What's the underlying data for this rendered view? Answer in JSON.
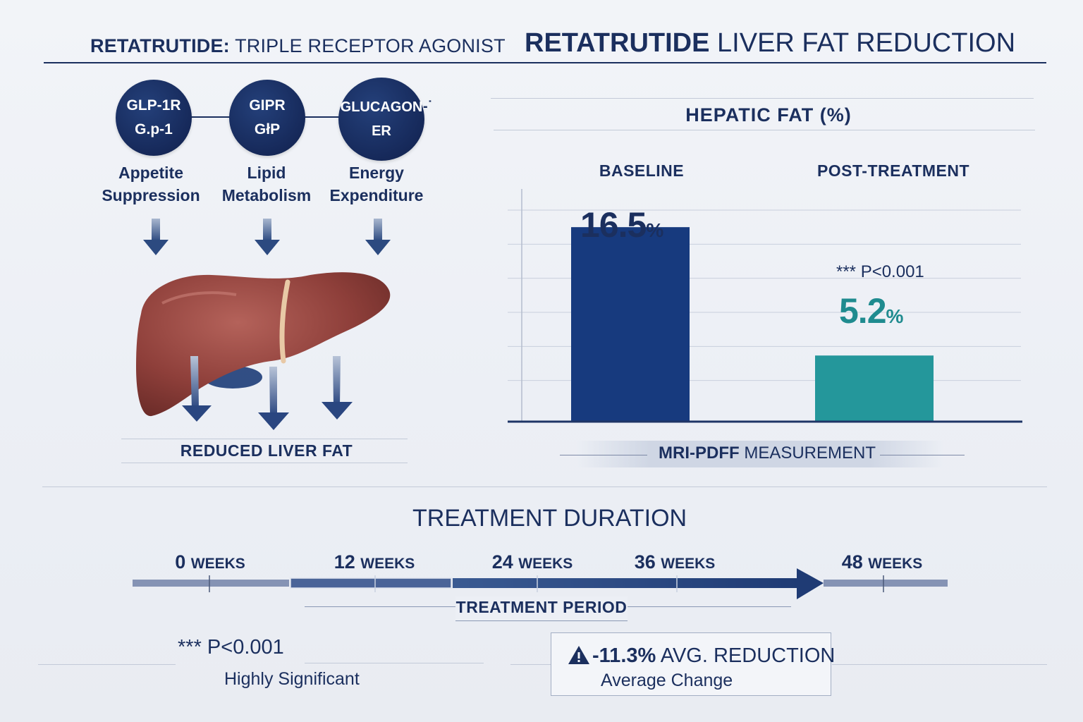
{
  "header": {
    "left_title_bold": "RETATRUTIDE:",
    "left_title_rest": "TRIPLE RECEPTOR AGONIST",
    "right_title_bold": "RETATRUTIDE",
    "right_title_rest": "LIVER FAT REDUCTION"
  },
  "mechanism": {
    "receptors": [
      {
        "line1": "GLP-1R",
        "line2": "G.p-1",
        "label_line1": "Appetite",
        "label_line2": "Suppression"
      },
      {
        "line1": "GIPR",
        "line2": "GłP",
        "label_line1": "Lipid",
        "label_line2": "Metabolism"
      },
      {
        "line1": "GLUCAGON",
        "line2": "ER",
        "label_line1": "Energy",
        "label_line2": "Expenditure"
      }
    ],
    "glucagon_tail": "-˙",
    "outcome": "REDUCED LIVER FAT",
    "colors": {
      "node": "#16295a",
      "liver": "#8e3f3a",
      "arrow": "#2c4a80"
    },
    "icons": [
      "down-arrow-icon",
      "liver-icon"
    ]
  },
  "chart_data": {
    "type": "bar",
    "title": "HEPATIC FAT (%)",
    "categories": [
      "BASELINE",
      "POST-TREATMENT"
    ],
    "values": [
      16.5,
      5.2
    ],
    "value_labels": [
      "16.5",
      "5.2"
    ],
    "unit": "%",
    "significance": "*** P<0.001",
    "footer": {
      "bold": "MRI-PDFF",
      "rest": "MEASUREMENT"
    },
    "ylim": [
      0,
      18
    ],
    "grid": true,
    "colors": [
      "#173a7e",
      "#24979b"
    ]
  },
  "timeline": {
    "title": "TREATMENT DURATION",
    "marks": [
      {
        "value": "0",
        "unit": "WEEKS"
      },
      {
        "value": "12",
        "unit": "WEEKS"
      },
      {
        "value": "24",
        "unit": "WEEKS"
      },
      {
        "value": "36",
        "unit": "WEEKS"
      },
      {
        "value": "48",
        "unit": "WEEKS"
      }
    ],
    "period_label": "TREATMENT PERIOD"
  },
  "stats": {
    "significance_value": "*** P<0.001",
    "significance_caption": "Highly Significant",
    "reduction_value": "-11.3%",
    "reduction_label": "AVG. REDUCTION",
    "reduction_caption": "Average Change",
    "icons": [
      "warning-triangle-icon"
    ]
  }
}
